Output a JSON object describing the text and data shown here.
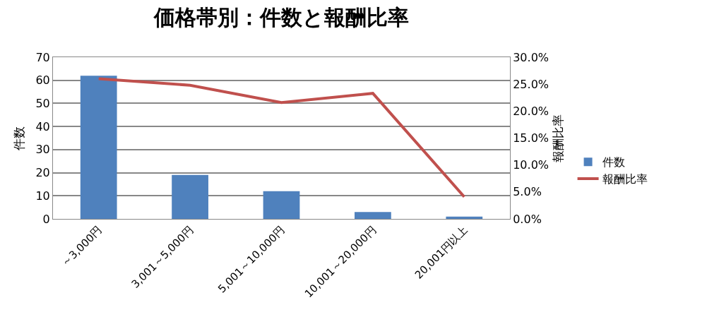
{
  "chart_data": {
    "type": "bar",
    "title": "価格帯別：件数と報酬比率",
    "ylabel": "件数",
    "y2label": "報酬比率",
    "categories": [
      "～3,000円",
      "3,001～5,000円",
      "5,001～10,000円",
      "10,001～20,000円",
      "20,001円以上"
    ],
    "series": [
      {
        "name": "件数",
        "color": "#4f81bd",
        "values": [
          62,
          19,
          12,
          3,
          1
        ]
      },
      {
        "name": "報酬比率",
        "type": "line",
        "axis": "y2",
        "color": "#c0504d",
        "values": [
          26.0,
          24.8,
          21.6,
          23.3,
          4.1
        ]
      }
    ],
    "ylim": [
      0,
      70
    ],
    "yticks": [
      0,
      10,
      20,
      30,
      40,
      50,
      60,
      70
    ],
    "y2lim": [
      0,
      30
    ],
    "y2ticks": [
      {
        "value": 0,
        "label": "0.0%"
      },
      {
        "value": 5,
        "label": "5.0%"
      },
      {
        "value": 10,
        "label": "10.0%"
      },
      {
        "value": 15,
        "label": "15.0%"
      },
      {
        "value": 20,
        "label": "20.0%"
      },
      {
        "value": 25,
        "label": "25.0%"
      },
      {
        "value": 30,
        "label": "30.0%"
      }
    ],
    "grid": "y",
    "legend": "right",
    "marker": "none",
    "line_style": "solid"
  }
}
